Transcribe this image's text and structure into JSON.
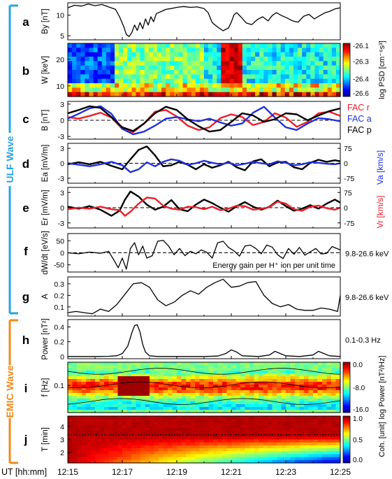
{
  "figure": {
    "x_axis_label": "UT [hh:mm]",
    "x_ticks": [
      "12:15",
      "12:17",
      "12:19",
      "12:21",
      "12:23",
      "12:25"
    ],
    "section_ulf": "ULF Wave",
    "section_emic": "EMIC Wave",
    "colors": {
      "ulf_bracket": "#2aa3e6",
      "emic_bracket": "#f08a1c",
      "red": "#e8202a",
      "blue": "#2030d8",
      "black": "#000000"
    }
  },
  "chart_data": [
    {
      "panel": "a",
      "type": "line",
      "ylabel": "By [nT]",
      "yticks": [
        5,
        10
      ],
      "ylim": [
        4,
        13
      ],
      "series": [
        {
          "color": "#000000",
          "x": [
            0,
            0.25,
            0.5,
            0.75,
            1,
            1.25,
            1.5,
            1.75,
            1.9,
            2.05,
            2.15,
            2.25,
            2.35,
            2.45,
            2.55,
            2.65,
            2.75,
            2.85,
            2.95,
            3.05,
            3.15,
            3.25,
            3.4,
            3.6,
            3.8,
            4,
            4.25,
            4.5,
            4.75,
            5,
            5.15,
            5.3,
            5.5,
            5.7,
            5.9,
            6,
            6.1,
            6.2,
            6.35,
            6.55,
            6.75,
            6.95,
            7.15,
            7.35,
            7.5,
            7.65,
            7.85,
            8.05,
            8.25,
            8.45,
            8.65,
            8.85,
            9.05,
            9.25,
            9.45,
            9.6,
            9.8,
            10
          ],
          "y": [
            11.8,
            12.4,
            12.2,
            12.7,
            12.3,
            12.6,
            12,
            11.4,
            9.6,
            7.3,
            5.3,
            4.8,
            5.8,
            7.6,
            6.3,
            8.2,
            6.7,
            9.1,
            7.6,
            9.6,
            8.4,
            10.4,
            10.8,
            11.4,
            11.6,
            11.9,
            12.1,
            11.9,
            12,
            11.6,
            10.6,
            8.2,
            7.1,
            6.2,
            6.9,
            8.3,
            10.1,
            10.6,
            9.6,
            8.1,
            7.7,
            8.9,
            9.6,
            8.6,
            9.9,
            10.6,
            9.9,
            9.3,
            8.6,
            8.3,
            9.7,
            10.2,
            9.1,
            9.9,
            10.6,
            10.9,
            11.5,
            11.8
          ]
        }
      ]
    },
    {
      "panel": "b",
      "type": "heatmap",
      "ylabel": "W [keV]",
      "yticks": [
        10,
        20
      ],
      "ylim": [
        6,
        26
      ],
      "colorbar_label": "log PSD [cm⁻⁶s³]",
      "colorbar_ticks": [
        "-26.1",
        "-26.3",
        "-26.4",
        "-26.6"
      ],
      "clim": [
        -26.65,
        -26.05
      ]
    },
    {
      "panel": "c",
      "type": "line",
      "ylabel": "B [nT]",
      "yticks": [
        3,
        0,
        -3
      ],
      "ylim": [
        -3.5,
        3.5
      ],
      "zero_line": true,
      "legend": [
        {
          "label": "FAC r",
          "color": "#e8202a"
        },
        {
          "label": "FAC a",
          "color": "#2030d8"
        },
        {
          "label": "FAC p",
          "color": "#000000"
        }
      ],
      "series": [
        {
          "name": "FAC r",
          "color": "#e8202a",
          "x": [
            0,
            0.4,
            0.8,
            1.2,
            1.6,
            2,
            2.4,
            2.8,
            3.2,
            3.6,
            4,
            4.4,
            4.8,
            5.2,
            5.6,
            6,
            6.4,
            6.8,
            7.2,
            7.6,
            8,
            8.4,
            8.8,
            9.2,
            9.6,
            10
          ],
          "y": [
            0.6,
            0.3,
            0.8,
            1.4,
            0.5,
            -1.6,
            -2.2,
            -0.6,
            1.6,
            1.9,
            0.7,
            -1,
            -1.8,
            -1.3,
            0.4,
            1.1,
            0.6,
            -0.9,
            -0.3,
            1.3,
            0.5,
            -1.2,
            -0.3,
            1.3,
            1.6,
            0.8
          ]
        },
        {
          "name": "FAC a",
          "color": "#2030d8",
          "x": [
            0,
            0.4,
            0.8,
            1.2,
            1.6,
            2,
            2.4,
            2.8,
            3.2,
            3.6,
            4,
            4.4,
            4.8,
            5.2,
            5.6,
            6,
            6.4,
            6.8,
            7.2,
            7.6,
            8,
            8.4,
            8.8,
            9.2,
            9.6,
            10
          ],
          "y": [
            0.3,
            1.2,
            2.2,
            2.6,
            1.2,
            -1.6,
            -2.6,
            -2.1,
            -1,
            0.3,
            0.6,
            0.2,
            -0.2,
            0.3,
            -0.4,
            -1,
            -0.6,
            1.4,
            2.5,
            0.5,
            -1.3,
            -1.8,
            -0.6,
            0.4,
            0.2,
            -0.2
          ]
        },
        {
          "name": "FAC p",
          "color": "#000000",
          "x": [
            0,
            0.4,
            0.8,
            1.2,
            1.6,
            2,
            2.4,
            2.8,
            3.2,
            3.6,
            4,
            4.4,
            4.8,
            5.2,
            5.6,
            6,
            6.4,
            6.8,
            7.2,
            7.6,
            8,
            8.4,
            8.8,
            9.2,
            9.6,
            10
          ],
          "y": [
            1.3,
            1.9,
            2.6,
            2.3,
            0.6,
            -1.3,
            -2,
            -0.6,
            1.3,
            2.5,
            1.9,
            0.2,
            -1.1,
            -2.1,
            -1.8,
            -0.3,
            1.3,
            0.9,
            -0.3,
            0.2,
            1.3,
            1.1,
            0,
            0.9,
            1.7,
            2.2
          ]
        }
      ]
    },
    {
      "panel": "d",
      "type": "line",
      "ylabel": "Ea [mV/m]",
      "yticks": [
        3,
        0,
        -3
      ],
      "ylim": [
        -4,
        4
      ],
      "right_ticks": [
        "75",
        "0",
        "-75"
      ],
      "right_label": "Va [km/s]",
      "zero_line": true,
      "series": [
        {
          "name": "Ea",
          "color": "#000000",
          "x": [
            0,
            0.4,
            0.8,
            1.2,
            1.6,
            2,
            2.3,
            2.6,
            2.9,
            3.2,
            3.5,
            3.8,
            4.1,
            4.4,
            4.7,
            5,
            5.3,
            5.6,
            5.9,
            6.2,
            6.5,
            6.8,
            7.1,
            7.4,
            7.7,
            8,
            8.3,
            8.6,
            8.9,
            9.2,
            9.5,
            9.8,
            10
          ],
          "y": [
            -0.2,
            0.2,
            -0.2,
            0.3,
            -0.5,
            -1.2,
            0.8,
            2.7,
            3.4,
            1.6,
            -0.6,
            -0.4,
            0.3,
            -0.3,
            -1.2,
            -0.2,
            -0.9,
            -0.4,
            0.3,
            -0.8,
            -1.4,
            0.4,
            0.8,
            -0.6,
            0.2,
            0.3,
            -0.8,
            -1.2,
            0.1,
            0.7,
            0.3,
            0.6,
            0.4
          ]
        },
        {
          "name": "Va",
          "color": "#2030d8",
          "x": [
            0,
            0.4,
            0.8,
            1.2,
            1.6,
            2,
            2.3,
            2.6,
            2.9,
            3.2,
            3.5,
            3.8,
            4.1,
            4.4,
            4.7,
            5,
            5.3,
            5.6,
            5.9,
            6.2,
            6.5,
            6.8,
            7.1,
            7.4,
            7.7,
            8,
            8.3,
            8.6,
            8.9,
            9.2,
            9.5,
            9.8,
            10
          ],
          "y": [
            0,
            -0.3,
            -0.6,
            -0.2,
            0.3,
            -0.4,
            -1.8,
            -1.2,
            0.2,
            -0.6,
            0.3,
            0.8,
            0.5,
            -0.3,
            0,
            0.5,
            0.1,
            -0.2,
            0.1,
            -0.4,
            -0.1,
            0.3,
            0,
            -0.2,
            0.4,
            0.1,
            -0.4,
            -0.2,
            0.2,
            0.1,
            -0.1,
            -0.2,
            0
          ]
        }
      ]
    },
    {
      "panel": "e",
      "type": "line",
      "ylabel": "Er [mV/m]",
      "yticks": [
        3,
        0,
        -3
      ],
      "ylim": [
        -4,
        4
      ],
      "right_ticks": [
        "75",
        "0",
        "-75"
      ],
      "right_label": "Vr [km/s]",
      "zero_line": true,
      "series": [
        {
          "name": "Er",
          "color": "#000000",
          "x": [
            0,
            0.4,
            0.8,
            1.2,
            1.6,
            1.9,
            2.1,
            2.3,
            2.6,
            2.9,
            3.2,
            3.5,
            3.8,
            4.1,
            4.4,
            4.7,
            5,
            5.3,
            5.6,
            5.9,
            6.2,
            6.5,
            6.8,
            7.1,
            7.4,
            7.7,
            8,
            8.3,
            8.6,
            8.9,
            9.2,
            9.5,
            9.8,
            10
          ],
          "y": [
            0.2,
            -0.2,
            0.3,
            -0.4,
            -1.6,
            -0.6,
            1.6,
            3.2,
            2.2,
            0.6,
            -0.4,
            0.2,
            1.5,
            -0.3,
            -0.7,
            0.6,
            1.6,
            0.9,
            0,
            -0.8,
            0.3,
            1.1,
            0.2,
            -0.4,
            0.2,
            1.4,
            0.3,
            -0.6,
            -0.2,
            0.5,
            -0.2,
            0.8,
            1.6,
            1
          ]
        },
        {
          "name": "Vr",
          "color": "#e8202a",
          "x": [
            0,
            0.4,
            0.8,
            1.2,
            1.6,
            1.9,
            2.1,
            2.3,
            2.6,
            2.9,
            3.2,
            3.5,
            3.8,
            4.1,
            4.4,
            4.7,
            5,
            5.3,
            5.6,
            5.9,
            6.2,
            6.5,
            6.8,
            7.1,
            7.4,
            7.7,
            8,
            8.3,
            8.6,
            8.9,
            9.2,
            9.5,
            9.8,
            10
          ],
          "y": [
            -0.3,
            0,
            -0.2,
            0.2,
            -0.3,
            -0.5,
            -1.6,
            -0.8,
            0.8,
            2,
            1.8,
            0.4,
            -0.2,
            -0.4,
            0.2,
            0.1,
            -0.3,
            0.2,
            -0.5,
            -0.2,
            0.4,
            0.3,
            -0.4,
            -0.2,
            0.1,
            1.2,
            0.8,
            -0.3,
            -0.6,
            0.2,
            0.4,
            -0.1,
            -0.4,
            0
          ]
        }
      ]
    },
    {
      "panel": "f",
      "type": "line",
      "ylabel": "dW/dt [eV/s]",
      "yticks": [
        50,
        0,
        -50
      ],
      "ylim": [
        -80,
        80
      ],
      "right_label": "9.8-26.6 keV",
      "annotation": "Energy gain per H⁺ ion per unit time",
      "zero_line": true,
      "series": [
        {
          "color": "#000000",
          "x": [
            0,
            0.4,
            0.8,
            1.2,
            1.5,
            1.7,
            1.85,
            2,
            2.15,
            2.3,
            2.45,
            2.6,
            2.75,
            2.9,
            3.1,
            3.3,
            3.5,
            3.7,
            3.9,
            4.1,
            4.3,
            4.5,
            4.7,
            4.9,
            5.1,
            5.3,
            5.5,
            5.7,
            5.9,
            6.1,
            6.3,
            6.5,
            6.7,
            6.9,
            7.1,
            7.3,
            7.5,
            7.7,
            7.9,
            8.1,
            8.3,
            8.5,
            8.7,
            8.9,
            9.1,
            9.3,
            9.5,
            9.7,
            10
          ],
          "y": [
            0,
            -4,
            3,
            -2,
            6,
            -32,
            -62,
            -22,
            -68,
            18,
            42,
            -8,
            28,
            -22,
            -12,
            48,
            52,
            28,
            -8,
            18,
            -12,
            6,
            -4,
            12,
            2,
            -22,
            42,
            48,
            22,
            8,
            -14,
            28,
            32,
            18,
            -4,
            32,
            24,
            -8,
            -24,
            18,
            -6,
            22,
            -10,
            4,
            18,
            -5,
            -2,
            26,
            12
          ]
        }
      ]
    },
    {
      "panel": "g",
      "type": "line",
      "ylabel": "A",
      "yticks": [
        0.3,
        0.2,
        0.1
      ],
      "ylim": [
        0.02,
        0.36
      ],
      "right_label": "9.8-26.6 keV",
      "series": [
        {
          "color": "#000000",
          "x": [
            0,
            0.3,
            0.6,
            0.9,
            1.2,
            1.5,
            1.8,
            2.1,
            2.4,
            2.7,
            3,
            3.3,
            3.6,
            3.9,
            4.2,
            4.5,
            4.8,
            5.1,
            5.4,
            5.7,
            6,
            6.3,
            6.6,
            6.9,
            7.2,
            7.5,
            7.8,
            8.1,
            8.4,
            8.7,
            9,
            9.3,
            9.6,
            9.9,
            10
          ],
          "y": [
            0.05,
            0.06,
            0.05,
            0.04,
            0.08,
            0.06,
            0.12,
            0.21,
            0.3,
            0.31,
            0.27,
            0.16,
            0.11,
            0.14,
            0.2,
            0.24,
            0.21,
            0.27,
            0.31,
            0.34,
            0.27,
            0.28,
            0.31,
            0.32,
            0.2,
            0.13,
            0.1,
            0.12,
            0.08,
            0.07,
            0.07,
            0.09,
            0.08,
            0.06,
            0.2
          ]
        }
      ]
    },
    {
      "panel": "h",
      "type": "line",
      "ylabel": "Power [nT²]",
      "yticks": [
        0.4,
        0.2,
        0
      ],
      "ylim": [
        -0.03,
        0.5
      ],
      "right_label": "0.1-0.3 Hz",
      "series": [
        {
          "color": "#000000",
          "x": [
            0,
            1,
            1.5,
            1.8,
            2,
            2.2,
            2.35,
            2.45,
            2.55,
            2.65,
            2.75,
            2.85,
            3,
            3.3,
            4,
            5,
            5.5,
            5.8,
            6,
            6.2,
            6.4,
            7,
            7.4,
            7.6,
            7.8,
            8,
            8.5,
            9,
            9.2,
            9.4,
            9.6,
            10
          ],
          "y": [
            0,
            0,
            0.003,
            0.01,
            0.04,
            0.14,
            0.32,
            0.42,
            0.43,
            0.33,
            0.16,
            0.06,
            0.01,
            0,
            0,
            0,
            0.006,
            0.04,
            0.09,
            0.06,
            0.01,
            0,
            0.02,
            0.07,
            0.04,
            0.01,
            0,
            0.02,
            0.07,
            0.04,
            0.01,
            0
          ]
        }
      ]
    },
    {
      "panel": "i",
      "type": "heatmap",
      "ylabel": "f [Hz]",
      "yticks": [
        0.1
      ],
      "colorbar_label": "log Power [nT²/Hz]",
      "colorbar_ticks": [
        "0.0",
        "-8.0",
        "-16.0"
      ],
      "clim": [
        -16,
        0
      ]
    },
    {
      "panel": "j",
      "type": "heatmap",
      "ylabel": "T [min]",
      "yticks": [
        4,
        3,
        2
      ],
      "ylim": [
        1.2,
        4.8
      ],
      "colorbar_label": "Coh. [unit]",
      "colorbar_ticks": [
        "1.0",
        "0.5",
        "0.0"
      ],
      "clim": [
        0,
        1
      ]
    }
  ]
}
